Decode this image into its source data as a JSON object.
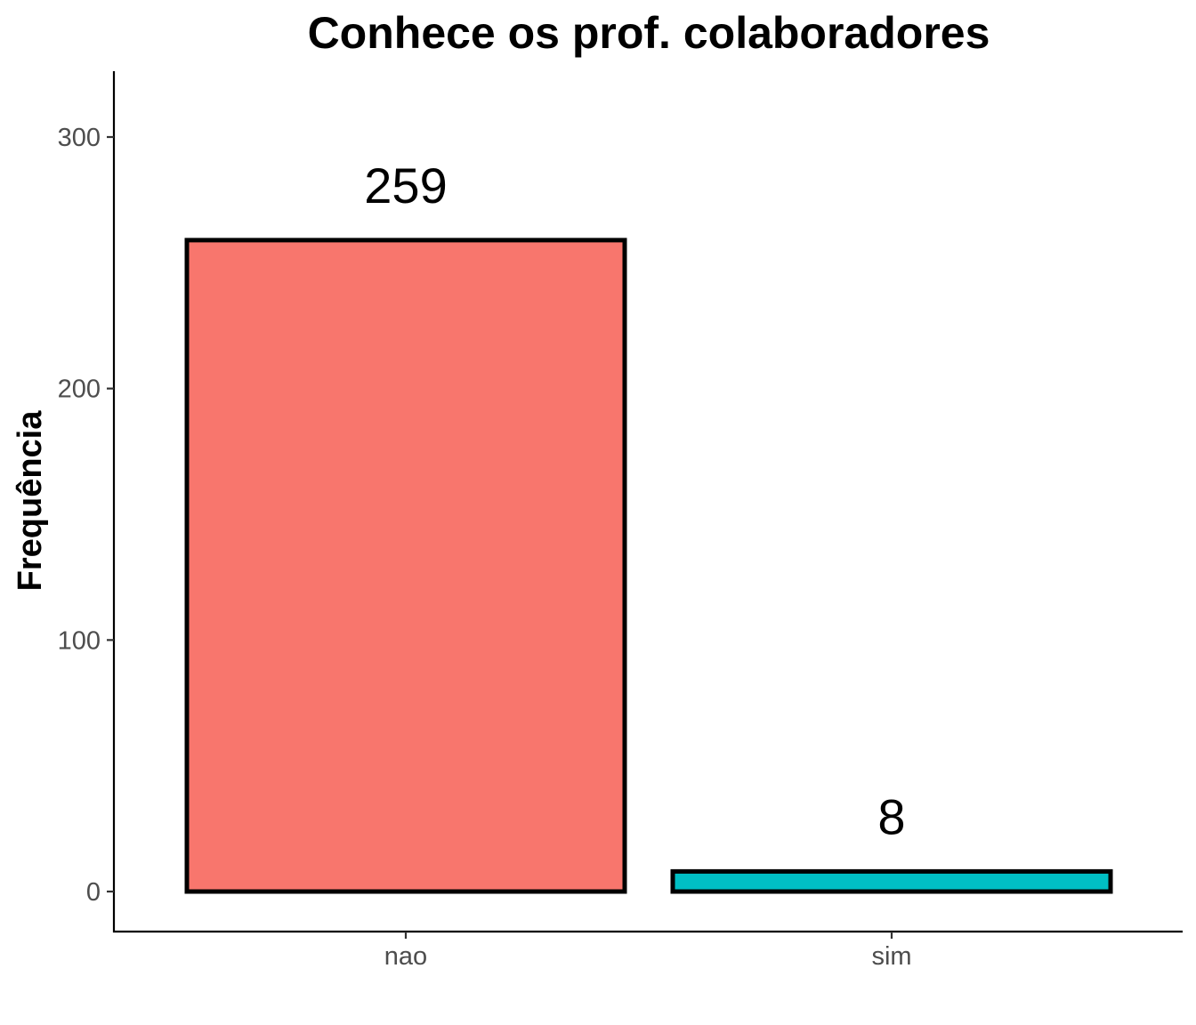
{
  "chart_data": {
    "type": "bar",
    "title": "Conhece os prof. colaboradores",
    "xlabel": "",
    "ylabel": "Frequência",
    "categories": [
      "nao",
      "sim"
    ],
    "values": [
      259,
      8
    ],
    "data_labels": [
      "259",
      "8"
    ],
    "colors": [
      "#F8766D",
      "#00BFC4"
    ],
    "bar_outline_color": "#000000",
    "yticks": [
      0,
      100,
      200,
      300
    ],
    "ytick_labels": [
      "0",
      "100",
      "200",
      "300"
    ],
    "ylim": [
      -16,
      326
    ],
    "grid": false,
    "legend": "none"
  }
}
